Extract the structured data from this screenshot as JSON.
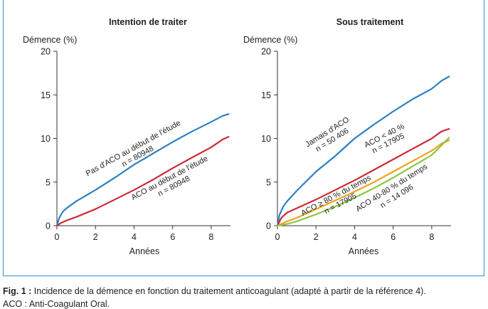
{
  "caption": {
    "label": "Fig. 1 :",
    "text": "Incidence de la démence en fonction du traitement anticoagulant (adapté à partir de la référence 4).",
    "line2": "ACO : Anti-Coagulant Oral."
  },
  "colors": {
    "blue": "#2f7fc1",
    "red": "#cc2a36",
    "orange": "#f0a020",
    "green": "#8cc63e",
    "frame": "#2f8fc9"
  },
  "chart_data": [
    {
      "type": "line",
      "title": "Intention de traiter",
      "ylabel": "Démence (%)",
      "xlabel": "Années",
      "xlim": [
        0,
        9
      ],
      "ylim": [
        0,
        20
      ],
      "xticks": [
        0,
        2,
        4,
        6,
        8
      ],
      "yticks": [
        0,
        5,
        10,
        15,
        20
      ],
      "series": [
        {
          "color": "blue",
          "labels": [
            "Pas d'ACO au début de l'étude",
            "n = 80948"
          ],
          "x": [
            0,
            0.1,
            0.3,
            0.5,
            1,
            2,
            3,
            4,
            5,
            6,
            7,
            8,
            8.6,
            8.9
          ],
          "y": [
            0,
            0.8,
            1.6,
            2.0,
            2.8,
            4.1,
            5.5,
            7.0,
            8.3,
            9.6,
            10.8,
            11.9,
            12.6,
            12.8
          ]
        },
        {
          "color": "red",
          "labels": [
            "ACO au début de l'étude",
            "n = 80948"
          ],
          "x": [
            0,
            0.2,
            0.5,
            1,
            2,
            3,
            4,
            5,
            6,
            7,
            8,
            8.6,
            8.9
          ],
          "y": [
            0,
            0.3,
            0.6,
            1.0,
            1.9,
            3.0,
            4.1,
            5.3,
            6.6,
            7.8,
            9.0,
            9.9,
            10.2
          ]
        }
      ]
    },
    {
      "type": "line",
      "title": "Sous traitement",
      "ylabel": "Démence (%)",
      "xlabel": "Années",
      "xlim": [
        0,
        9
      ],
      "ylim": [
        0,
        20
      ],
      "xticks": [
        0,
        2,
        4,
        6,
        8
      ],
      "yticks": [
        0,
        5,
        10,
        15,
        20
      ],
      "series": [
        {
          "color": "blue",
          "labels": [
            "Jamais d'ACO",
            "n = 50 406"
          ],
          "x": [
            0,
            0.1,
            0.3,
            0.5,
            1,
            2,
            3,
            4,
            5,
            6,
            7,
            8,
            8.5,
            8.9
          ],
          "y": [
            0,
            1.2,
            2.2,
            2.8,
            4.0,
            6.2,
            8.0,
            10.0,
            11.6,
            13.1,
            14.5,
            15.7,
            16.6,
            17.1
          ]
        },
        {
          "color": "red",
          "labels": [
            "ACO < 40 %",
            "n = 17905"
          ],
          "x": [
            0,
            0.2,
            0.5,
            1,
            2,
            3,
            4,
            5,
            6,
            7,
            8,
            8.5,
            8.9
          ],
          "y": [
            0,
            0.9,
            1.5,
            2.0,
            3.0,
            4.1,
            5.2,
            6.4,
            7.6,
            8.8,
            10.0,
            10.8,
            11.1
          ]
        },
        {
          "color": "orange",
          "labels": [
            "ACO ≥ 80 % du temps",
            "n = 17905"
          ],
          "x": [
            0,
            0.5,
            1,
            2,
            3,
            4,
            5,
            6,
            7,
            8,
            8.5,
            8.9
          ],
          "y": [
            0,
            0.5,
            0.9,
            1.9,
            2.9,
            3.9,
            5.0,
            6.2,
            7.4,
            8.6,
            9.4,
            9.8
          ]
        },
        {
          "color": "green",
          "labels": [
            "ACO 40-80 % du temps",
            "n = 14 096"
          ],
          "x": [
            0,
            0.5,
            1,
            2,
            3,
            4,
            5,
            6,
            7,
            8,
            8.5,
            8.9
          ],
          "y": [
            0,
            0.2,
            0.5,
            1.3,
            2.2,
            3.2,
            4.3,
            5.5,
            6.8,
            8.1,
            9.2,
            10.1
          ]
        }
      ]
    }
  ]
}
